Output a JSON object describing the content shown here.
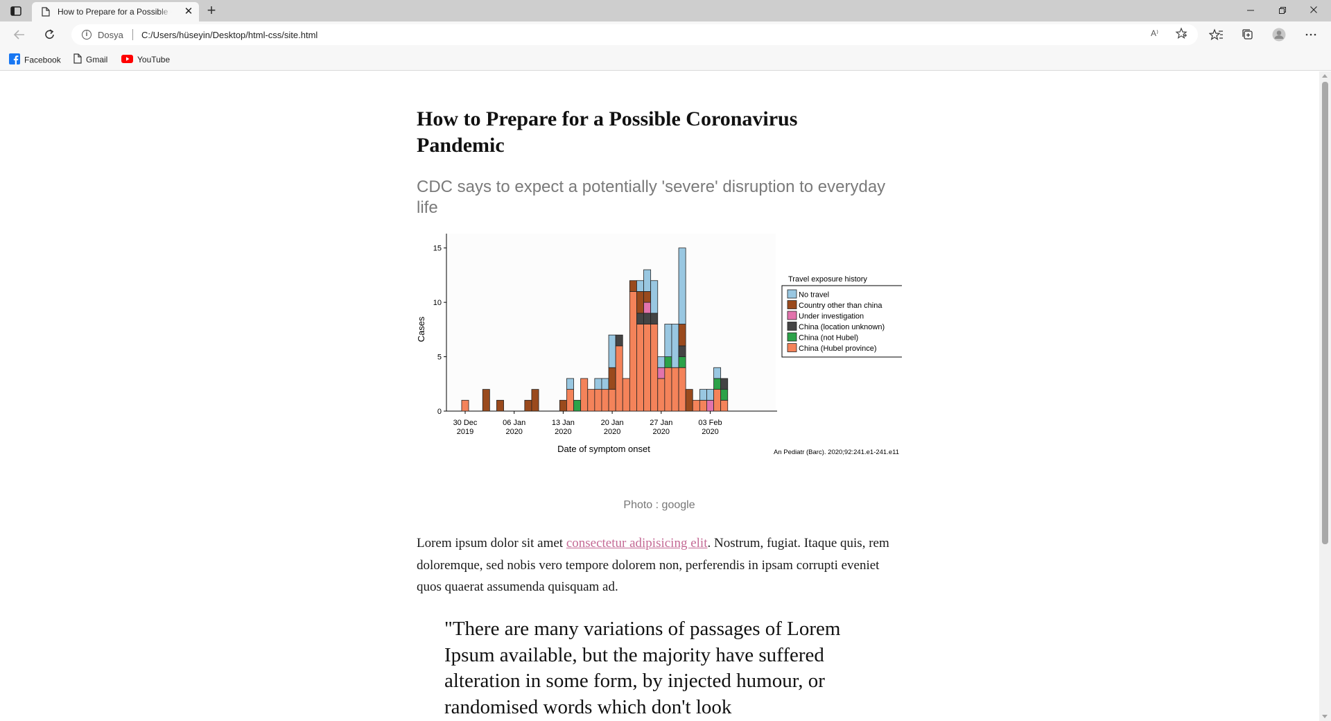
{
  "browser": {
    "tab_title": "How to Prepare for a Possible Coronavirus Pandemic",
    "scheme_label": "Dosya",
    "url": "C:/Users/hüseyin/Desktop/html-css/site.html",
    "read_aloud_label": "A⁾",
    "bookmarks": [
      {
        "label": "Facebook",
        "icon": "facebook-icon"
      },
      {
        "label": "Gmail",
        "icon": "page-icon"
      },
      {
        "label": "YouTube",
        "icon": "youtube-icon"
      }
    ]
  },
  "article": {
    "title": "How to Prepare for a Possible Coronavirus Pandemic",
    "subtitle": "CDC says to expect a potentially 'severe' disruption to everyday life",
    "photo_caption": "Photo : google",
    "lead_before": "Lorem ipsum dolor sit amet ",
    "lead_link": "consectetur adipisicing elit",
    "lead_after": ". Nostrum, fugiat. Itaque quis, rem doloremque, sed nobis vero tempore dolorem non, perferendis in ipsam corrupti eveniet quos quaerat assumenda quisquam ad.",
    "quote": "\"There are many variations of passages of Lorem Ipsum available, but the majority have suffered alteration in some form, by injected humour, or randomised words which don't look"
  },
  "chart_data": {
    "type": "bar",
    "stacked": true,
    "xlabel": "Date of symptom onset",
    "ylabel": "Cases",
    "ylim": [
      0,
      16
    ],
    "yticks": [
      0,
      5,
      10,
      15
    ],
    "xticks": [
      {
        "day": 0,
        "label": [
          "30 Dec",
          "2019"
        ]
      },
      {
        "day": 7,
        "label": [
          "06 Jan",
          "2020"
        ]
      },
      {
        "day": 14,
        "label": [
          "13 Jan",
          "2020"
        ]
      },
      {
        "day": 21,
        "label": [
          "20 Jan",
          "2020"
        ]
      },
      {
        "day": 28,
        "label": [
          "27 Jan",
          "2020"
        ]
      },
      {
        "day": 35,
        "label": [
          "03 Feb",
          "2020"
        ]
      }
    ],
    "legend_title": "Travel exposure history",
    "legend_position": "right",
    "source_note": "An Pediatr (Barc). 2020;92:241.e1-241.e11",
    "series": [
      {
        "name": "China (Hubel province)",
        "color": "#f4835a"
      },
      {
        "name": "China (not Hubel)",
        "color": "#2ca249"
      },
      {
        "name": "China (location unknown)",
        "color": "#444444"
      },
      {
        "name": "Under investigation",
        "color": "#e273ac"
      },
      {
        "name": "Country other than china",
        "color": "#9a4a1d"
      },
      {
        "name": "No travel",
        "color": "#99c7e1"
      }
    ],
    "legend_order": [
      5,
      4,
      3,
      2,
      1,
      0
    ],
    "bars": [
      {
        "day": 0,
        "stack": [
          1,
          0,
          0,
          0,
          0,
          0
        ]
      },
      {
        "day": 3,
        "stack": [
          0,
          0,
          0,
          0,
          2,
          0
        ]
      },
      {
        "day": 5,
        "stack": [
          0,
          0,
          0,
          0,
          1,
          0
        ]
      },
      {
        "day": 9,
        "stack": [
          0,
          0,
          0,
          0,
          1,
          0
        ]
      },
      {
        "day": 10,
        "stack": [
          0,
          0,
          0,
          0,
          2,
          0
        ]
      },
      {
        "day": 14,
        "stack": [
          0,
          0,
          0,
          0,
          1,
          0
        ]
      },
      {
        "day": 15,
        "stack": [
          2,
          0,
          0,
          0,
          0,
          1
        ]
      },
      {
        "day": 16,
        "stack": [
          0,
          1,
          0,
          0,
          0,
          0
        ]
      },
      {
        "day": 17,
        "stack": [
          3,
          0,
          0,
          0,
          0,
          0
        ]
      },
      {
        "day": 18,
        "stack": [
          2,
          0,
          0,
          0,
          0,
          0
        ]
      },
      {
        "day": 19,
        "stack": [
          2,
          0,
          0,
          0,
          0,
          1
        ]
      },
      {
        "day": 20,
        "stack": [
          2,
          0,
          0,
          0,
          0,
          1
        ]
      },
      {
        "day": 21,
        "stack": [
          2,
          0,
          0,
          0,
          2,
          3
        ]
      },
      {
        "day": 22,
        "stack": [
          6,
          0,
          1,
          0,
          0,
          0
        ]
      },
      {
        "day": 23,
        "stack": [
          3,
          0,
          0,
          0,
          0,
          0
        ]
      },
      {
        "day": 24,
        "stack": [
          11,
          0,
          0,
          0,
          1,
          0
        ]
      },
      {
        "day": 25,
        "stack": [
          8,
          0,
          1,
          0,
          2,
          1
        ]
      },
      {
        "day": 26,
        "stack": [
          8,
          0,
          1,
          1,
          1,
          2
        ]
      },
      {
        "day": 27,
        "stack": [
          8,
          0,
          1,
          0,
          0,
          3
        ]
      },
      {
        "day": 28,
        "stack": [
          3,
          0,
          0,
          1,
          0,
          1
        ]
      },
      {
        "day": 29,
        "stack": [
          4,
          1,
          0,
          0,
          0,
          3
        ]
      },
      {
        "day": 30,
        "stack": [
          4,
          0,
          0,
          0,
          0,
          4
        ]
      },
      {
        "day": 31,
        "stack": [
          4,
          1,
          1,
          0,
          2,
          7
        ]
      },
      {
        "day": 32,
        "stack": [
          0,
          0,
          0,
          0,
          2,
          0
        ]
      },
      {
        "day": 33,
        "stack": [
          1,
          0,
          0,
          0,
          0,
          0
        ]
      },
      {
        "day": 34,
        "stack": [
          1,
          0,
          0,
          0,
          0,
          1
        ]
      },
      {
        "day": 35,
        "stack": [
          0,
          0,
          0,
          1,
          0,
          1
        ]
      },
      {
        "day": 36,
        "stack": [
          2,
          1,
          0,
          0,
          0,
          1
        ]
      },
      {
        "day": 37,
        "stack": [
          1,
          1,
          1,
          0,
          0,
          0
        ]
      }
    ]
  }
}
